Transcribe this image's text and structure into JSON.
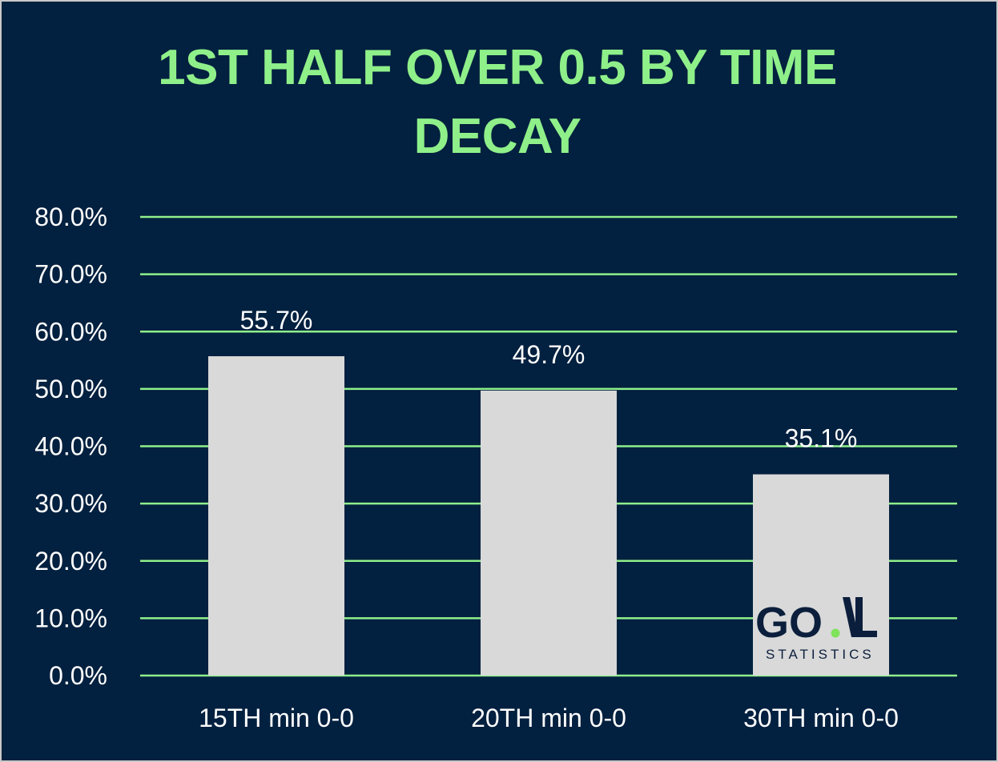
{
  "chart_data": {
    "type": "bar",
    "title_lines": [
      "1ST HALF OVER 0.5 BY TIME",
      "DECAY"
    ],
    "categories": [
      "15TH min 0-0",
      "20TH min 0-0",
      "30TH min 0-0"
    ],
    "values": [
      55.7,
      49.7,
      35.1
    ],
    "data_labels": [
      "55.7%",
      "49.7%",
      "35.1%"
    ],
    "yticks": [
      "0.0%",
      "10.0%",
      "20.0%",
      "30.0%",
      "40.0%",
      "50.0%",
      "60.0%",
      "70.0%",
      "80.0%"
    ],
    "ylim": [
      0,
      80
    ],
    "xlabel": "",
    "ylabel": "",
    "grid": true,
    "legend": "none",
    "colors": {
      "background": "#02203f",
      "bar": "#d9d9d9",
      "grid": "#8ff08a",
      "title": "#8ff08a",
      "text": "#ffffff"
    }
  },
  "watermark": {
    "brand": "GO.AL",
    "tagline": "STATISTICS",
    "dot_color": "#7ee35a"
  }
}
